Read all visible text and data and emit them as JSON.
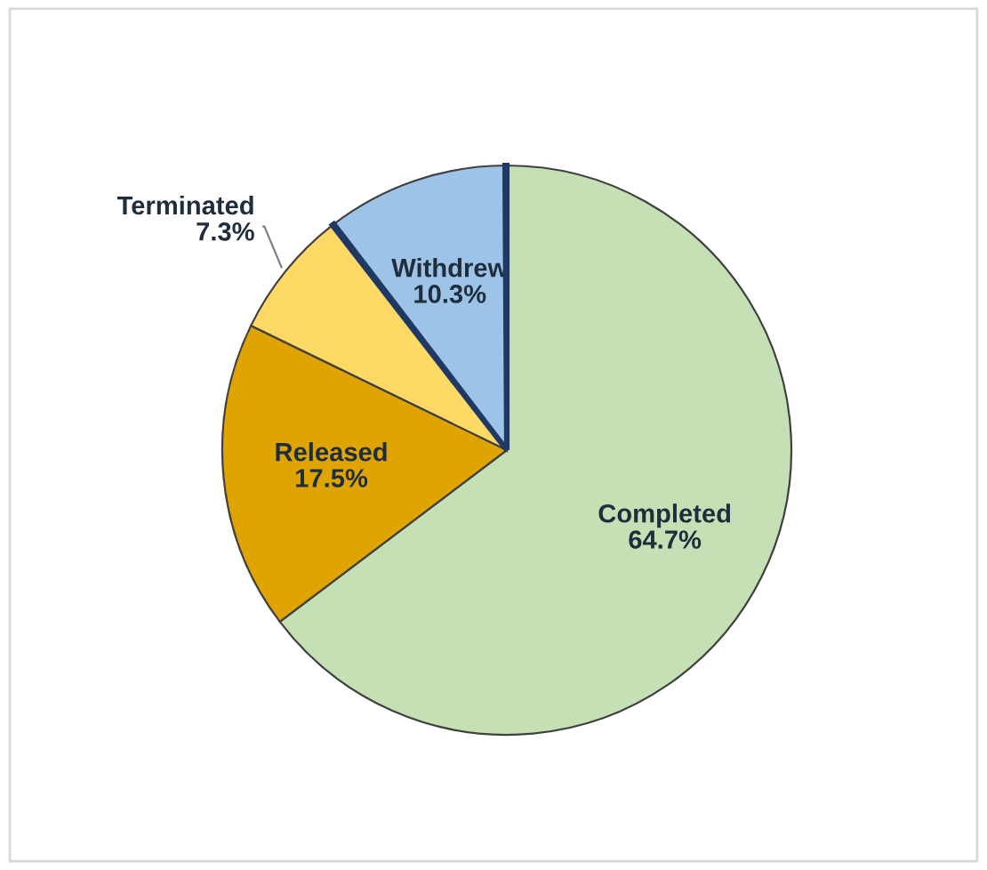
{
  "chart_data": {
    "type": "pie",
    "categories": [
      "Completed",
      "Released",
      "Terminated",
      null,
      "Withdrew",
      null
    ],
    "values": [
      64.7,
      17.5,
      7.3,
      0.1,
      10.3,
      0.1
    ],
    "value_labels": [
      "64.7%",
      "17.5%",
      "7.3%",
      null,
      "10.3%",
      null
    ],
    "colors": [
      "#c5e0b4",
      "#e0a400",
      "#ffd966",
      "#1f3864",
      "#9dc3e6",
      "#1f3864"
    ],
    "legend": false
  }
}
